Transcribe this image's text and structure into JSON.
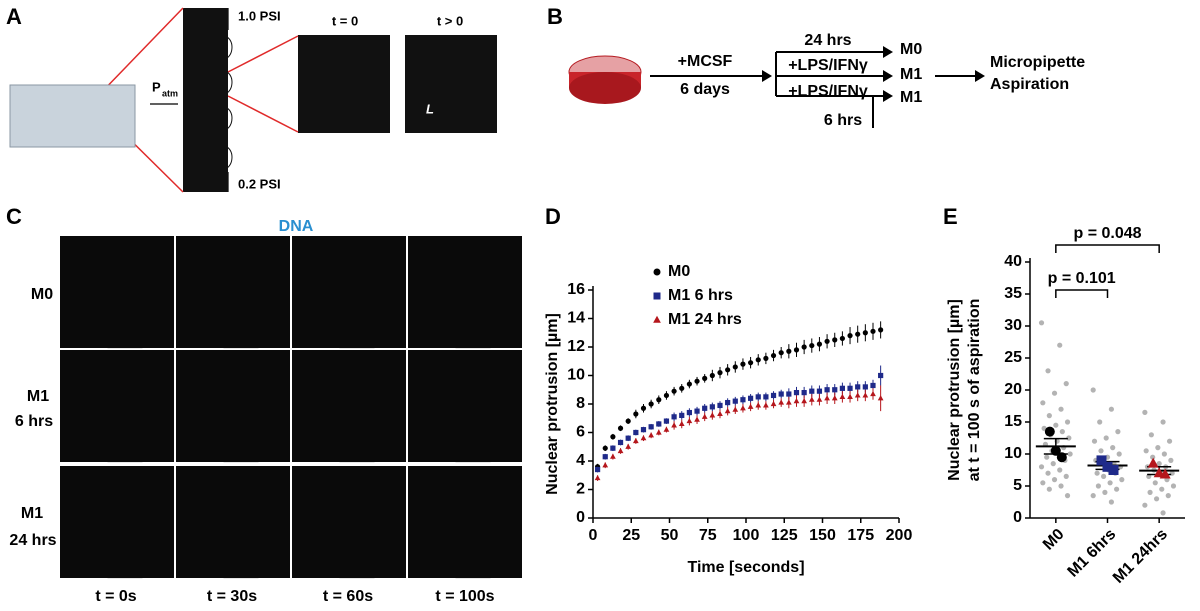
{
  "panels": {
    "a": {
      "label": "A",
      "pressure_top": "1.0 PSI",
      "pressure_bottom": "0.2 PSI",
      "p_atm": "P",
      "p_atm_sub": "atm",
      "time_zero": "t = 0",
      "time_later": "t > 0",
      "length": "L"
    },
    "b": {
      "label": "B",
      "treatment": "+MCSF",
      "duration": "6 days",
      "m0_time": "24 hrs",
      "stim_1": "+LPS/IFNγ",
      "stim_2": "+LPS/IFNγ",
      "m1_time": "6 hrs",
      "outputs": [
        "M0",
        "M1",
        "M1"
      ],
      "result": [
        "Micropipette",
        "Aspiration"
      ]
    },
    "c": {
      "label": "C",
      "channel": "DNA",
      "rows": [
        [
          "M0"
        ],
        [
          "M1",
          "6 hrs"
        ],
        [
          "M1",
          "24 hrs"
        ]
      ],
      "times": [
        "t = 0s",
        "t = 30s",
        "t = 60s",
        "t = 100s"
      ]
    }
  },
  "chart_data": [
    {
      "type": "scatter",
      "panel": "D",
      "xlabel": "Time [seconds]",
      "ylabel": "Nuclear protrusion [µm]",
      "xlim": [
        0,
        200
      ],
      "xticks": [
        0,
        25,
        50,
        75,
        100,
        125,
        150,
        175,
        200
      ],
      "ylim": [
        0,
        16
      ],
      "yticks": [
        0,
        2,
        4,
        6,
        8,
        10,
        12,
        14,
        16
      ],
      "x": [
        3,
        8,
        13,
        18,
        23,
        28,
        33,
        38,
        43,
        48,
        53,
        58,
        63,
        68,
        73,
        78,
        83,
        88,
        93,
        98,
        103,
        108,
        113,
        118,
        123,
        128,
        133,
        138,
        143,
        148,
        153,
        158,
        163,
        168,
        173,
        178,
        183,
        188
      ],
      "series": [
        {
          "name": "M0",
          "color": "#000000",
          "marker": "circle",
          "values": [
            3.6,
            4.9,
            5.7,
            6.3,
            6.8,
            7.3,
            7.7,
            8.0,
            8.3,
            8.6,
            8.9,
            9.1,
            9.4,
            9.6,
            9.8,
            10.0,
            10.2,
            10.4,
            10.6,
            10.8,
            10.9,
            11.1,
            11.2,
            11.4,
            11.6,
            11.7,
            11.8,
            12.0,
            12.1,
            12.2,
            12.4,
            12.5,
            12.6,
            12.8,
            12.9,
            13.0,
            13.1,
            13.2
          ],
          "errors": [
            0.2,
            0.2,
            0.2,
            0.2,
            0.2,
            0.3,
            0.3,
            0.3,
            0.3,
            0.3,
            0.3,
            0.3,
            0.3,
            0.3,
            0.3,
            0.4,
            0.4,
            0.4,
            0.4,
            0.4,
            0.4,
            0.4,
            0.4,
            0.4,
            0.4,
            0.5,
            0.5,
            0.5,
            0.5,
            0.5,
            0.5,
            0.5,
            0.5,
            0.6,
            0.6,
            0.6,
            0.6,
            0.6
          ]
        },
        {
          "name": "M1 6 hrs",
          "color": "#1f2a8a",
          "marker": "square",
          "values": [
            3.4,
            4.3,
            4.9,
            5.3,
            5.6,
            6.0,
            6.2,
            6.4,
            6.6,
            6.8,
            7.1,
            7.2,
            7.4,
            7.5,
            7.7,
            7.8,
            7.9,
            8.1,
            8.2,
            8.3,
            8.4,
            8.5,
            8.5,
            8.6,
            8.7,
            8.7,
            8.8,
            8.8,
            8.9,
            8.9,
            9.0,
            9.0,
            9.1,
            9.1,
            9.2,
            9.2,
            9.3,
            10.0
          ],
          "errors": [
            0.2,
            0.2,
            0.2,
            0.2,
            0.2,
            0.2,
            0.2,
            0.2,
            0.2,
            0.2,
            0.3,
            0.3,
            0.3,
            0.3,
            0.3,
            0.3,
            0.3,
            0.3,
            0.3,
            0.3,
            0.3,
            0.3,
            0.3,
            0.3,
            0.3,
            0.4,
            0.4,
            0.4,
            0.4,
            0.4,
            0.4,
            0.4,
            0.4,
            0.4,
            0.4,
            0.4,
            0.4,
            0.7
          ]
        },
        {
          "name": "M1 24 hrs",
          "color": "#b5161c",
          "marker": "triangle",
          "values": [
            2.8,
            3.7,
            4.3,
            4.7,
            5.0,
            5.4,
            5.6,
            5.8,
            6.0,
            6.2,
            6.5,
            6.6,
            6.8,
            6.9,
            7.1,
            7.2,
            7.3,
            7.5,
            7.6,
            7.7,
            7.8,
            7.9,
            7.9,
            8.0,
            8.1,
            8.1,
            8.2,
            8.2,
            8.3,
            8.3,
            8.4,
            8.4,
            8.5,
            8.5,
            8.6,
            8.6,
            8.7,
            8.4
          ],
          "errors": [
            0.2,
            0.2,
            0.2,
            0.2,
            0.2,
            0.2,
            0.2,
            0.2,
            0.2,
            0.2,
            0.3,
            0.3,
            0.3,
            0.3,
            0.3,
            0.3,
            0.3,
            0.3,
            0.3,
            0.3,
            0.3,
            0.3,
            0.3,
            0.3,
            0.3,
            0.4,
            0.4,
            0.4,
            0.4,
            0.4,
            0.4,
            0.4,
            0.4,
            0.4,
            0.4,
            0.4,
            0.4,
            0.9
          ]
        }
      ]
    },
    {
      "type": "strip",
      "panel": "E",
      "ylabel": [
        "Nuclear protrusion [µm]",
        "at t = 100 s of aspiration"
      ],
      "categories": [
        "M0",
        "M1 6hrs",
        "M1 24hrs"
      ],
      "colors": [
        "#000000",
        "#1f2a8a",
        "#b5161c"
      ],
      "markers": [
        "circle",
        "square",
        "triangle"
      ],
      "cell_color": "#b3b3b3",
      "ylim": [
        0,
        40
      ],
      "yticks": [
        0,
        5,
        10,
        15,
        20,
        25,
        30,
        35,
        40
      ],
      "cells": [
        [
          30.5,
          27,
          23,
          21,
          19.5,
          18,
          17,
          16,
          15,
          14.5,
          14,
          13.5,
          13,
          12.5,
          12,
          11.5,
          11,
          10.5,
          10,
          10,
          9.5,
          9,
          8.5,
          8,
          7.5,
          7,
          6.5,
          6,
          5.5,
          5,
          4.5,
          3.5
        ],
        [
          20,
          17,
          15,
          13.5,
          12.5,
          12,
          11,
          10.5,
          10,
          9.5,
          9,
          8.5,
          8.5,
          8,
          7.5,
          7,
          7,
          6.5,
          6,
          5.5,
          5,
          4.5,
          4,
          3.5,
          2.5
        ],
        [
          16.5,
          15,
          13,
          12,
          11,
          10.5,
          10,
          9.5,
          9,
          8.5,
          8,
          8,
          7.5,
          7,
          7,
          6.5,
          6,
          5.5,
          5,
          4.5,
          4,
          3.5,
          3,
          2,
          0.8
        ]
      ],
      "replicates": [
        [
          13.5,
          10.5,
          9.5
        ],
        [
          9,
          8,
          7.5
        ],
        [
          8.5,
          7,
          6.8
        ]
      ],
      "means": [
        11.2,
        8.2,
        7.4
      ],
      "sems": [
        1.2,
        0.6,
        0.6
      ],
      "p_values": [
        "p = 0.101",
        "p = 0.048"
      ]
    }
  ]
}
